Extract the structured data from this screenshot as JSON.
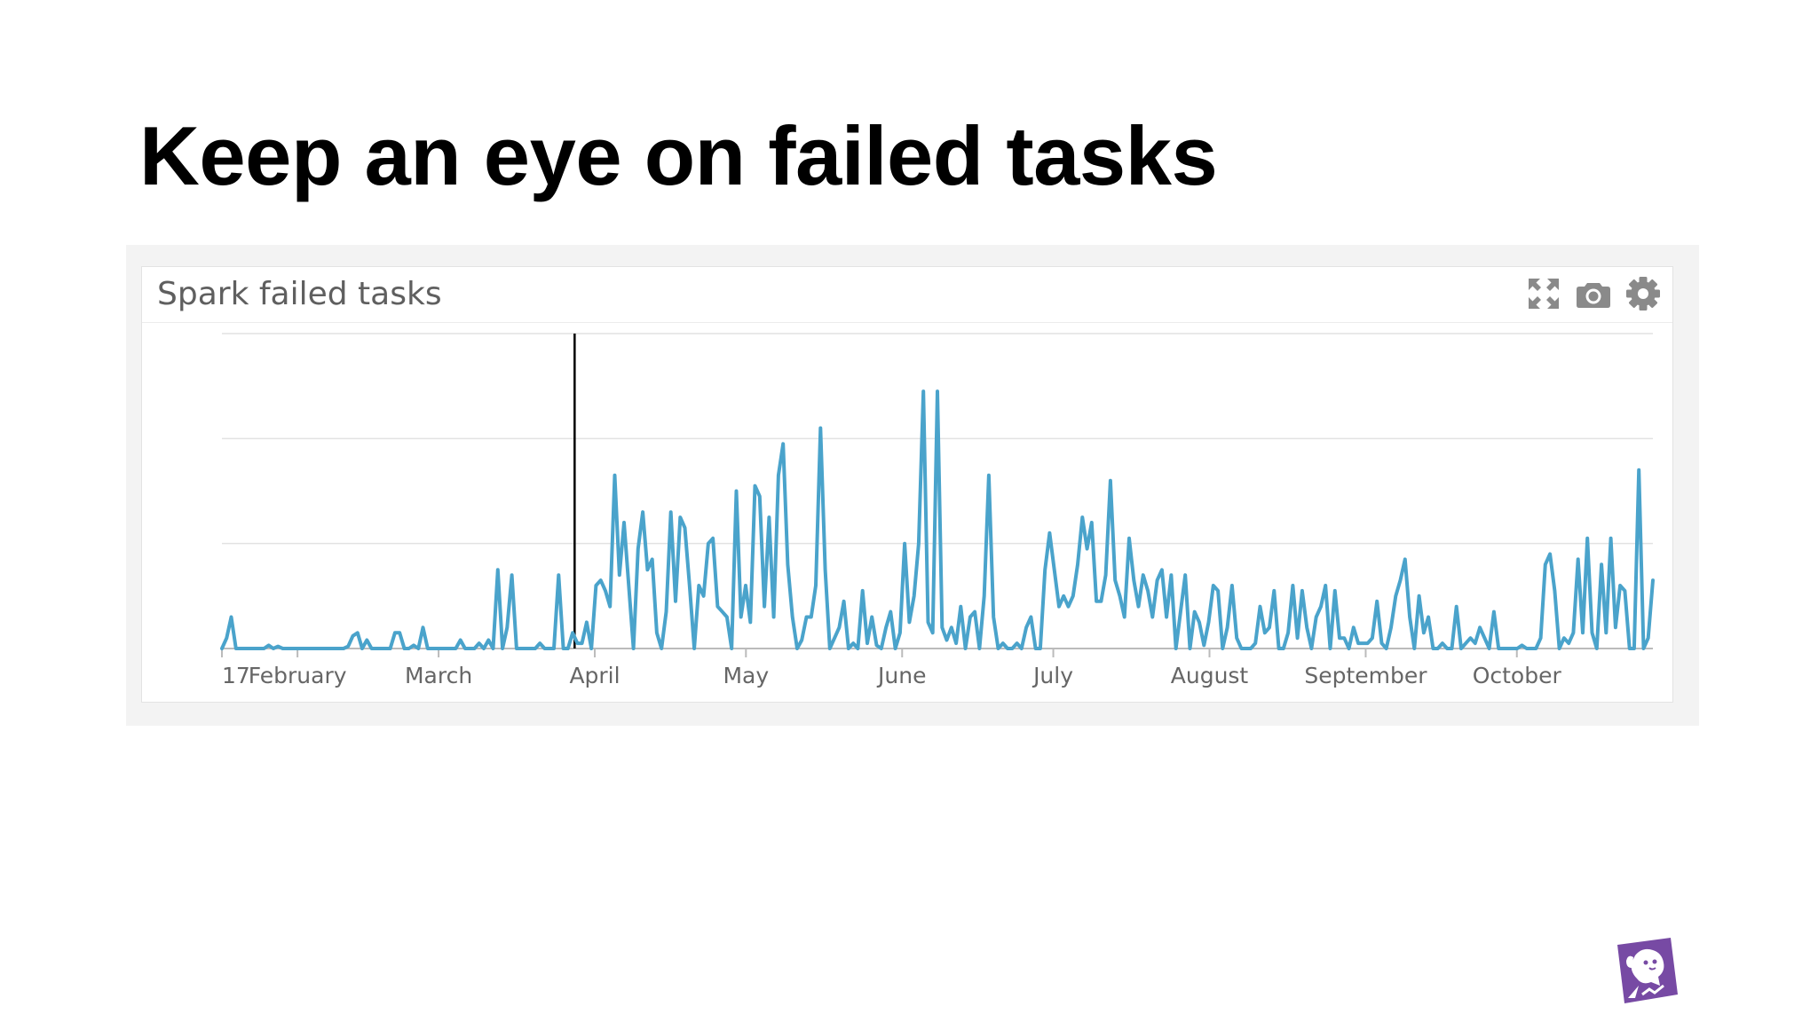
{
  "slide": {
    "title": "Keep an eye on failed tasks"
  },
  "widget": {
    "title": "Spark failed tasks",
    "tools": [
      {
        "icon": "expand-icon"
      },
      {
        "icon": "camera-icon"
      },
      {
        "icon": "gear-icon"
      }
    ]
  },
  "colors": {
    "series": "#4aa3cb",
    "marker": "#000000",
    "grid": "#e2e2e2",
    "axis": "#bbbbbb",
    "widget_title": "#5f5f5f",
    "logo": "#774aa4"
  },
  "chart_data": {
    "type": "line",
    "xlabel": "",
    "ylabel": "",
    "x_unit": "day-of-year",
    "x_start_day": 17,
    "x_end_day": 301,
    "ylim": [
      0,
      30
    ],
    "y_gridlines": [
      0,
      10,
      20,
      30
    ],
    "y_tick_labels_shown": false,
    "grid": true,
    "legend": "none",
    "x_ticks": [
      {
        "label": "17",
        "day": 17
      },
      {
        "label": "February",
        "day": 32
      },
      {
        "label": "March",
        "day": 60
      },
      {
        "label": "April",
        "day": 91
      },
      {
        "label": "May",
        "day": 121
      },
      {
        "label": "June",
        "day": 152
      },
      {
        "label": "July",
        "day": 182
      },
      {
        "label": "August",
        "day": 213
      },
      {
        "label": "September",
        "day": 244
      },
      {
        "label": "October",
        "day": 274
      }
    ],
    "vertical_marker_day": 87,
    "series": [
      {
        "values": [
          0,
          1,
          3,
          0,
          0,
          0,
          0,
          0,
          0,
          0,
          0.3,
          0,
          0.2,
          0,
          0,
          0,
          0,
          0,
          0,
          0,
          0,
          0,
          0,
          0,
          0,
          0,
          0,
          0.2,
          1.2,
          1.5,
          0,
          0.8,
          0,
          0,
          0,
          0,
          0,
          1.5,
          1.5,
          0,
          0,
          0.3,
          0,
          2,
          0,
          0,
          0,
          0,
          0,
          0,
          0,
          0.8,
          0,
          0,
          0,
          0.5,
          0,
          0.8,
          0,
          7.5,
          0,
          2,
          7,
          0,
          0,
          0,
          0,
          0,
          0.5,
          0,
          0,
          0,
          7,
          0,
          0,
          1.5,
          0.5,
          0.5,
          2.5,
          0,
          6,
          6.5,
          5.5,
          4,
          16.5,
          7,
          12,
          6,
          0,
          9.5,
          13,
          7.5,
          8.5,
          1.5,
          0,
          3.5,
          13,
          4.5,
          12.5,
          11.5,
          6,
          0,
          6,
          5,
          10,
          10.5,
          4,
          3.5,
          3,
          0,
          15,
          3,
          6,
          2.5,
          15.5,
          14.5,
          4,
          12.5,
          3,
          16.5,
          19.5,
          8,
          3,
          0,
          0.8,
          3,
          3,
          6,
          21,
          7.5,
          0,
          1,
          2,
          4.5,
          0,
          0.5,
          0,
          5.5,
          0.5,
          3,
          0.3,
          0,
          2,
          3.5,
          0,
          1.5,
          10,
          2.5,
          5,
          10,
          24.5,
          2.5,
          1.5,
          24.5,
          2,
          0.8,
          2,
          0.5,
          4,
          0,
          3,
          3.5,
          0,
          5,
          16.5,
          3,
          0,
          0.5,
          0,
          0,
          0.5,
          0,
          2,
          3,
          0,
          0,
          7.5,
          11,
          7.5,
          4,
          5,
          4,
          5,
          8,
          12.5,
          9.5,
          12,
          4.5,
          4.5,
          7,
          16,
          6.5,
          5,
          3,
          10.5,
          6.5,
          4,
          7,
          5.5,
          3,
          6.5,
          7.5,
          3,
          7,
          0,
          3.5,
          7,
          0,
          3.5,
          2.5,
          0.3,
          2.5,
          6,
          5.5,
          0,
          2,
          6,
          1,
          0,
          0,
          0,
          0.5,
          4,
          1.5,
          2,
          5.5,
          0,
          0,
          1.5,
          6,
          1,
          5.5,
          2,
          0,
          3,
          4,
          6,
          0,
          5.5,
          1,
          1,
          0,
          2,
          0.5,
          0.5,
          0.5,
          1,
          4.5,
          0.5,
          0,
          2,
          5,
          6.5,
          8.5,
          3,
          0,
          5,
          1.5,
          3,
          0,
          0,
          0.5,
          0,
          0,
          4,
          0,
          0.5,
          1,
          0.5,
          2,
          1,
          0,
          3.5,
          0,
          0,
          0,
          0,
          0,
          0.3,
          0,
          0,
          0,
          1,
          8,
          9,
          5.5,
          0,
          1,
          0.5,
          1.5,
          8.5,
          1.5,
          10.5,
          1.5,
          0,
          8,
          1.5,
          10.5,
          2,
          6,
          5.5,
          0,
          0,
          17,
          0,
          1,
          6.5
        ]
      }
    ]
  }
}
